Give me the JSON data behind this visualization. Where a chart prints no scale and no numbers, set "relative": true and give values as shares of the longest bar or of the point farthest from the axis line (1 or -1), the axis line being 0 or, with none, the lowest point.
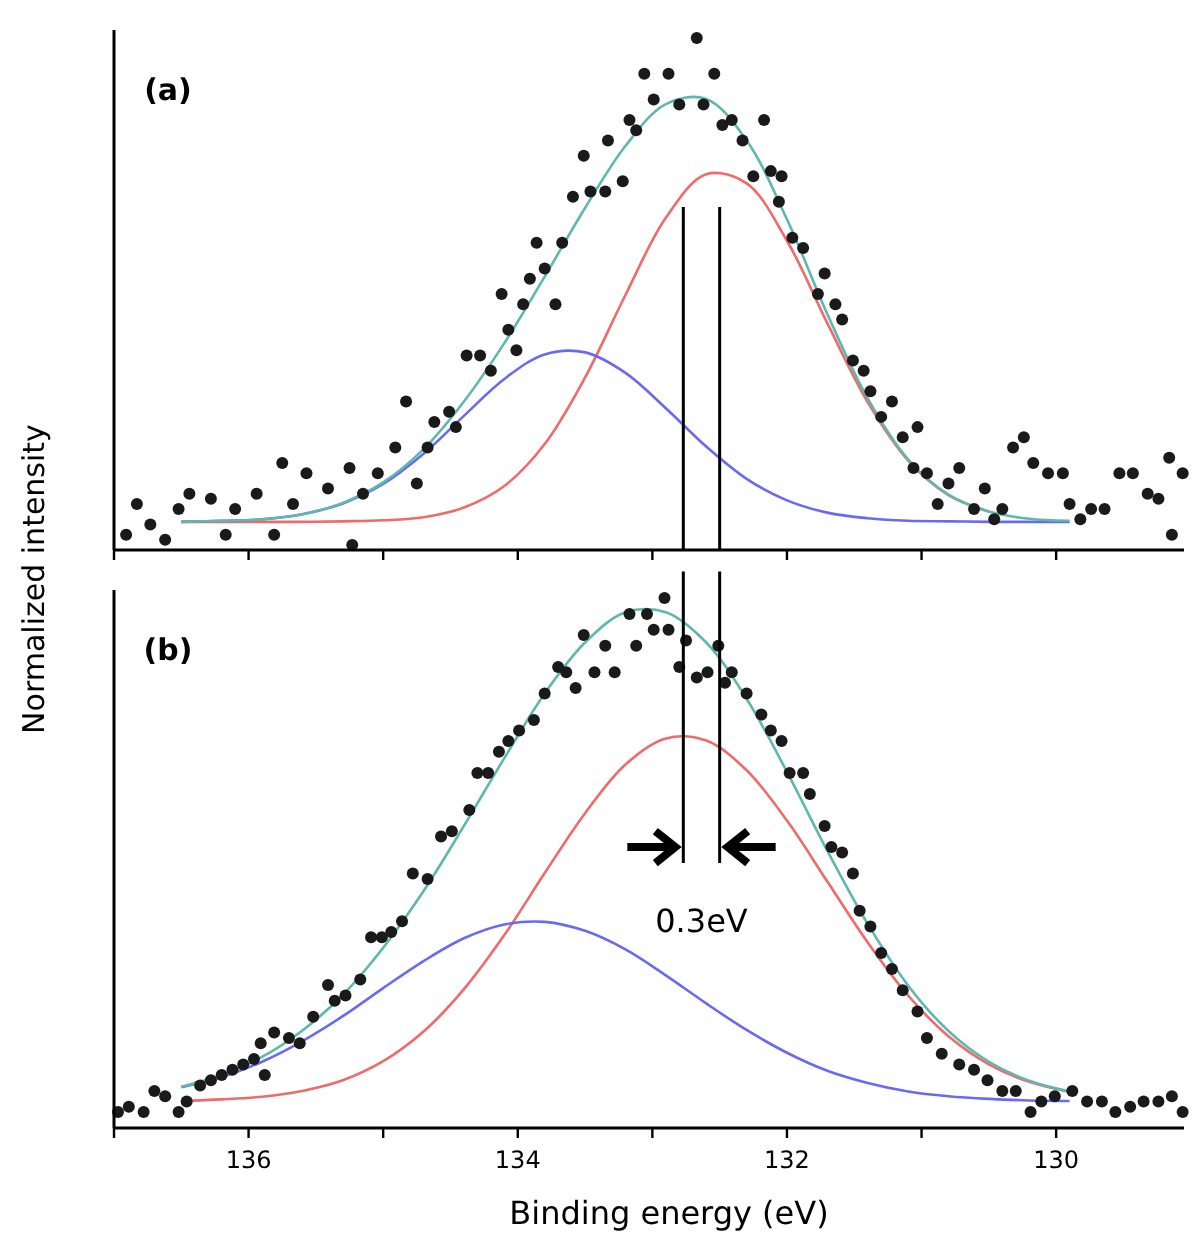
{
  "chart_data": [
    {
      "type": "line",
      "title": "(a)",
      "ylabel": "Normalized intensity",
      "relative": true,
      "xlim": [
        137,
        129.05
      ],
      "xticks": [
        {
          "value": 137,
          "label": null
        },
        136,
        {
          "value": 135,
          "label": null
        },
        134,
        {
          "value": 133,
          "label": null
        },
        132,
        {
          "value": 131,
          "label": null
        },
        130
      ],
      "tick_labels": false,
      "grid": false,
      "x": [
        136.5,
        136.2,
        135.9,
        135.6,
        135.3,
        135.0,
        134.7,
        134.4,
        134.1,
        133.8,
        133.5,
        133.2,
        132.9,
        132.6,
        132.3,
        132.0,
        131.7,
        131.4,
        131.1,
        130.8,
        130.5,
        130.2,
        129.9
      ],
      "ref_lines": [
        {
          "axis": "x",
          "value": 132.77,
          "color": "#000000"
        },
        {
          "axis": "x",
          "value": 132.5,
          "color": "#000000"
        }
      ],
      "series": [
        {
          "type": "scatter",
          "marker": "circle",
          "color": "#1a1a1a",
          "x": [
            136.91,
            136.83,
            136.73,
            136.62,
            136.52,
            136.44,
            136.28,
            136.17,
            136.1,
            135.94,
            135.81,
            135.75,
            135.67,
            135.57,
            135.41,
            135.25,
            135.23,
            135.15,
            135.04,
            134.91,
            134.83,
            134.75,
            134.67,
            134.62,
            134.51,
            134.46,
            134.38,
            134.28,
            134.2,
            134.12,
            134.07,
            134.01,
            133.96,
            133.91,
            133.86,
            133.8,
            133.72,
            133.67,
            133.59,
            133.51,
            133.46,
            133.35,
            133.33,
            133.22,
            133.17,
            133.12,
            133.06,
            132.99,
            132.88,
            132.8,
            132.67,
            132.62,
            132.54,
            132.48,
            132.41,
            132.33,
            132.25,
            132.17,
            132.12,
            132.04,
            132.06,
            131.96,
            131.88,
            131.77,
            131.72,
            131.64,
            131.59,
            131.51,
            131.43,
            131.38,
            131.3,
            131.22,
            131.14,
            131.03,
            131.06,
            130.96,
            130.88,
            130.8,
            130.72,
            130.61,
            130.53,
            130.46,
            130.4,
            130.32,
            130.24,
            130.17,
            130.06,
            129.95,
            129.9,
            129.82,
            129.74,
            129.64,
            129.53,
            129.43,
            129.32,
            129.24,
            129.16,
            129.14,
            129.06
          ],
          "values": [
            0.03,
            0.09,
            0.05,
            0.02,
            0.08,
            0.11,
            0.1,
            0.03,
            0.08,
            0.11,
            0.03,
            0.17,
            0.09,
            0.15,
            0.12,
            0.16,
            0.01,
            0.11,
            0.15,
            0.2,
            0.29,
            0.13,
            0.2,
            0.25,
            0.27,
            0.24,
            0.38,
            0.38,
            0.35,
            0.5,
            0.43,
            0.39,
            0.48,
            0.53,
            0.6,
            0.55,
            0.48,
            0.6,
            0.69,
            0.77,
            0.7,
            0.7,
            0.8,
            0.72,
            0.84,
            0.82,
            0.93,
            0.88,
            0.93,
            0.87,
            1.0,
            0.87,
            0.93,
            0.83,
            0.84,
            0.8,
            0.73,
            0.84,
            0.74,
            0.73,
            0.68,
            0.61,
            0.59,
            0.5,
            0.54,
            0.48,
            0.45,
            0.37,
            0.35,
            0.31,
            0.26,
            0.29,
            0.22,
            0.24,
            0.16,
            0.15,
            0.09,
            0.13,
            0.16,
            0.08,
            0.12,
            0.06,
            0.08,
            0.2,
            0.22,
            0.17,
            0.15,
            0.15,
            0.09,
            0.06,
            0.08,
            0.08,
            0.15,
            0.15,
            0.11,
            0.1,
            0.18,
            0.03,
            0.15
          ]
        },
        {
          "color": "#f06a6a",
          "values": [
            0.055,
            0.055,
            0.055,
            0.055,
            0.056,
            0.058,
            0.064,
            0.083,
            0.125,
            0.207,
            0.337,
            0.498,
            0.649,
            0.734,
            0.716,
            0.604,
            0.443,
            0.289,
            0.175,
            0.107,
            0.075,
            null,
            null
          ]
        },
        {
          "color": "#6a6af0",
          "values": [
            0.055,
            0.057,
            0.06,
            0.07,
            0.091,
            0.129,
            0.188,
            0.262,
            0.334,
            0.382,
            0.386,
            0.346,
            0.277,
            0.202,
            0.139,
            0.097,
            0.073,
            0.062,
            0.057,
            0.056,
            0.055,
            0.055,
            0.055
          ]
        },
        {
          "color": "#5fb8b0",
          "values": [
            0.055,
            0.057,
            0.06,
            0.07,
            0.092,
            0.132,
            0.197,
            0.29,
            0.404,
            0.534,
            0.668,
            0.789,
            0.871,
            0.881,
            0.8,
            0.646,
            0.461,
            0.296,
            0.177,
            0.108,
            0.075,
            0.061,
            0.057
          ]
        }
      ]
    },
    {
      "type": "line",
      "title": "(b)",
      "xlabel": "Binding energy (eV)",
      "relative": true,
      "xlim": [
        137,
        129.05
      ],
      "xticks": [
        {
          "value": 137,
          "label": null
        },
        136,
        {
          "value": 135,
          "label": null
        },
        134,
        {
          "value": 133,
          "label": null
        },
        132,
        {
          "value": 131,
          "label": null
        },
        130
      ],
      "tick_labels": "x",
      "grid": false,
      "x": [
        136.5,
        136.2,
        135.9,
        135.6,
        135.3,
        135.0,
        134.7,
        134.4,
        134.1,
        133.8,
        133.5,
        133.2,
        132.9,
        132.6,
        132.3,
        132.0,
        131.7,
        131.4,
        131.1,
        130.8,
        130.5,
        130.2,
        129.9
      ],
      "ref_lines": [
        {
          "axis": "x",
          "value": 132.77,
          "color": "#000000"
        },
        {
          "axis": "x",
          "value": 132.5,
          "color": "#000000"
        }
      ],
      "annotations": [
        "0.3eV"
      ],
      "series": [
        {
          "type": "scatter",
          "marker": "circle",
          "color": "#1a1a1a",
          "x": [
            136.97,
            136.89,
            136.78,
            136.7,
            136.62,
            136.52,
            136.46,
            136.36,
            136.28,
            136.2,
            136.12,
            136.04,
            135.96,
            135.88,
            135.91,
            135.81,
            135.7,
            135.62,
            135.52,
            135.41,
            135.36,
            135.28,
            135.17,
            135.09,
            135.01,
            134.94,
            134.86,
            134.78,
            134.67,
            134.57,
            134.49,
            134.36,
            134.3,
            134.22,
            134.14,
            134.07,
            133.99,
            133.88,
            133.8,
            133.7,
            133.64,
            133.57,
            133.51,
            133.43,
            133.35,
            133.28,
            133.17,
            133.12,
            133.04,
            132.99,
            132.91,
            132.88,
            132.8,
            132.75,
            132.67,
            132.59,
            132.51,
            132.46,
            132.41,
            132.3,
            132.19,
            132.12,
            132.04,
            131.98,
            131.88,
            131.83,
            131.72,
            131.67,
            131.59,
            131.51,
            131.46,
            131.38,
            131.3,
            131.22,
            131.14,
            131.03,
            130.96,
            130.85,
            130.72,
            130.61,
            130.51,
            130.4,
            130.3,
            130.19,
            130.11,
            130.01,
            129.88,
            129.77,
            129.66,
            129.56,
            129.45,
            129.35,
            129.24,
            129.14,
            129.06
          ],
          "values": [
            0.03,
            0.04,
            0.03,
            0.07,
            0.06,
            0.03,
            0.05,
            0.08,
            0.09,
            0.1,
            0.11,
            0.12,
            0.13,
            0.1,
            0.16,
            0.18,
            0.17,
            0.16,
            0.21,
            0.27,
            0.24,
            0.25,
            0.28,
            0.36,
            0.36,
            0.37,
            0.39,
            0.48,
            0.47,
            0.55,
            0.56,
            0.6,
            0.67,
            0.67,
            0.71,
            0.73,
            0.75,
            0.77,
            0.82,
            0.87,
            0.86,
            0.83,
            0.93,
            0.86,
            0.91,
            0.86,
            0.97,
            0.91,
            0.97,
            0.94,
            1.0,
            0.94,
            0.87,
            0.92,
            0.85,
            0.86,
            0.91,
            0.84,
            0.86,
            0.82,
            0.78,
            0.75,
            0.73,
            0.67,
            0.67,
            0.63,
            0.57,
            0.53,
            0.52,
            0.48,
            0.41,
            0.38,
            0.33,
            0.3,
            0.26,
            0.22,
            0.17,
            0.14,
            0.12,
            0.11,
            0.09,
            0.07,
            0.07,
            0.03,
            0.05,
            0.06,
            0.07,
            0.05,
            0.05,
            0.03,
            0.04,
            0.05,
            0.05,
            0.06,
            0.03
          ]
        },
        {
          "color": "#f06a6a",
          "values": [
            0.051,
            0.054,
            0.059,
            0.07,
            0.09,
            0.126,
            0.182,
            0.262,
            0.364,
            0.481,
            0.594,
            0.686,
            0.735,
            0.731,
            0.675,
            0.58,
            0.465,
            0.35,
            0.25,
            0.173,
            0.12,
            0.087,
            0.068
          ]
        },
        {
          "color": "#6a6af0",
          "values": [
            0.077,
            0.096,
            0.125,
            0.164,
            0.211,
            0.264,
            0.315,
            0.358,
            0.384,
            0.389,
            0.372,
            0.337,
            0.288,
            0.235,
            0.185,
            0.142,
            0.108,
            0.085,
            0.069,
            0.06,
            0.055,
            0.052,
            0.051
          ]
        },
        {
          "color": "#5fb8b0",
          "values": [
            0.078,
            0.1,
            0.134,
            0.184,
            0.251,
            0.34,
            0.447,
            0.57,
            0.698,
            0.82,
            0.916,
            0.973,
            0.973,
            0.916,
            0.81,
            0.672,
            0.523,
            0.385,
            0.269,
            0.183,
            0.125,
            0.089,
            0.069
          ]
        }
      ]
    }
  ]
}
